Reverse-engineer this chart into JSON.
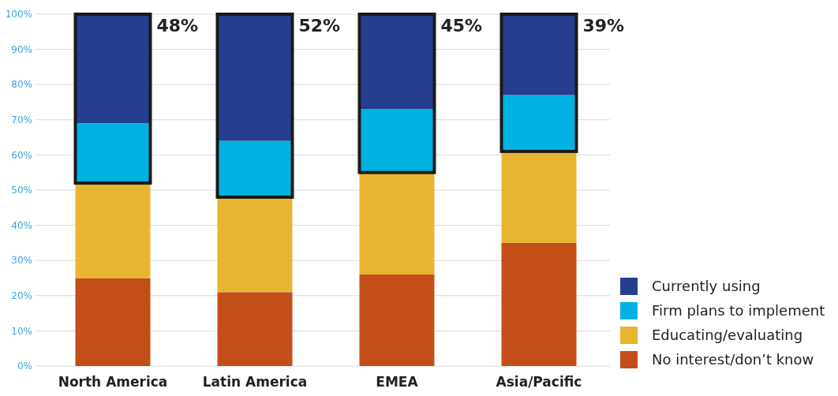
{
  "chart_data": {
    "type": "bar",
    "stacked": true,
    "categories": [
      "North America",
      "Latin America",
      "EMEA",
      "Asia/Pacific"
    ],
    "series": [
      {
        "name": "No interest/don’t know",
        "color": "#c44e18",
        "values": [
          25,
          21,
          26,
          35
        ]
      },
      {
        "name": "Educating/evaluating",
        "color": "#e8b530",
        "values": [
          27,
          27,
          29,
          26
        ]
      },
      {
        "name": "Firm plans to implement",
        "color": "#00b2e3",
        "values": [
          17,
          16,
          18,
          16
        ]
      },
      {
        "name": "Currently using",
        "color": "#253e8f",
        "values": [
          31,
          36,
          27,
          23
        ]
      }
    ],
    "ylim": [
      0,
      100
    ],
    "yticks": [
      {
        "value": 0,
        "label": "0%"
      },
      {
        "value": 10,
        "label": "10%"
      },
      {
        "value": 20,
        "label": "20%"
      },
      {
        "value": 30,
        "label": "30%"
      },
      {
        "value": 40,
        "label": "40%"
      },
      {
        "value": 50,
        "label": "50%"
      },
      {
        "value": 60,
        "label": "60%"
      },
      {
        "value": 70,
        "label": "70%"
      },
      {
        "value": 80,
        "label": "80%"
      },
      {
        "value": 90,
        "label": "90%"
      },
      {
        "value": 100,
        "label": "100%"
      }
    ],
    "grid": "y",
    "legend": "bottom right",
    "annotations": [
      {
        "text": "48%",
        "x": "North America",
        "y": 100
      },
      {
        "text": "52%",
        "x": "Latin America",
        "y": 100
      },
      {
        "text": "45%",
        "x": "EMEA",
        "y": 100
      },
      {
        "text": "39%",
        "x": "Asia/Pacific",
        "y": 100
      }
    ]
  }
}
